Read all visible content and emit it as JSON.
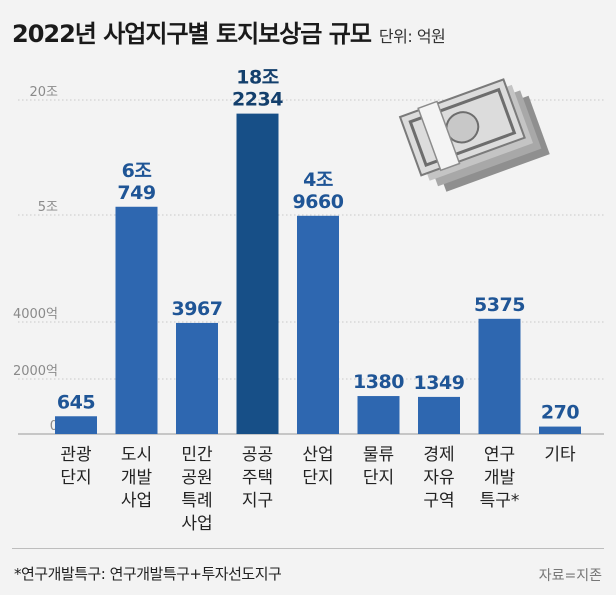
{
  "header": {
    "title": "2022년 사업지구별 토지보상금 규모",
    "unit": "단위: 억원"
  },
  "colors": {
    "bar": "#2e67b0",
    "bar_highlight": "#174f87",
    "label": "#1f5596",
    "gridline": "#c8c8c8",
    "axis_text": "#8a8a8a"
  },
  "chart_data": {
    "type": "bar",
    "title": "2022년 사업지구별 토지보상금 규모",
    "ylabel": "단위: 억원",
    "xlabel": "",
    "scale": "broken (segmented) y-axis",
    "ylim": [
      0,
      200000
    ],
    "y_ticks": [
      {
        "value": 0,
        "label": "0"
      },
      {
        "value": 2000,
        "label": "2000억"
      },
      {
        "value": 4000,
        "label": "4000억"
      },
      {
        "value": 50000,
        "label": "5조"
      },
      {
        "value": 200000,
        "label": "20조"
      }
    ],
    "categories": [
      [
        "관광",
        "단지"
      ],
      [
        "도시",
        "개발",
        "사업"
      ],
      [
        "민간",
        "공원",
        "특례",
        "사업"
      ],
      [
        "공공",
        "주택",
        "지구"
      ],
      [
        "산업",
        "단지"
      ],
      [
        "물류",
        "단지"
      ],
      [
        "경제",
        "자유",
        "구역"
      ],
      [
        "연구",
        "개발",
        "특구*"
      ],
      [
        "기타"
      ]
    ],
    "values": [
      645,
      60749,
      3967,
      182234,
      49660,
      1380,
      1349,
      5375,
      270
    ],
    "value_labels": [
      [
        "645"
      ],
      [
        "6조",
        "749"
      ],
      [
        "3967"
      ],
      [
        "18조",
        "2234"
      ],
      [
        "4조",
        "9660"
      ],
      [
        "1380"
      ],
      [
        "1349"
      ],
      [
        "5375"
      ],
      [
        "270"
      ]
    ],
    "highlight_index": 3
  },
  "footnote": "*연구개발특구: 연구개발특구+투자선도지구",
  "source": "자료=지존",
  "illustration": {
    "icon": "money-stack-icon"
  }
}
